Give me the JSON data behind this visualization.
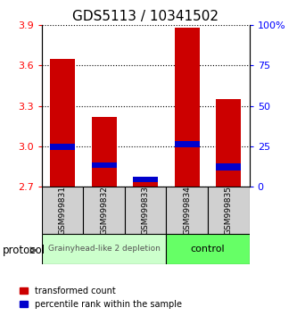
{
  "title": "GDS5113 / 10341502",
  "samples": [
    "GSM999831",
    "GSM999832",
    "GSM999833",
    "GSM999834",
    "GSM999835"
  ],
  "red_bar_bottom": [
    2.7,
    2.7,
    2.7,
    2.7,
    2.7
  ],
  "red_bar_top": [
    3.65,
    3.22,
    2.77,
    3.88,
    3.35
  ],
  "blue_bar_bottom": [
    2.97,
    2.84,
    2.73,
    2.99,
    2.82
  ],
  "blue_bar_top": [
    3.02,
    2.88,
    2.77,
    3.04,
    2.87
  ],
  "ylim_left": [
    2.7,
    3.9
  ],
  "ylim_right": [
    0,
    100
  ],
  "yticks_left": [
    2.7,
    3.0,
    3.3,
    3.6,
    3.9
  ],
  "yticks_right": [
    0,
    25,
    50,
    75,
    100
  ],
  "ytick_labels_right": [
    "0",
    "25",
    "50",
    "75",
    "100%"
  ],
  "group1_samples": [
    0,
    1,
    2
  ],
  "group2_samples": [
    3,
    4
  ],
  "group1_label": "Grainyhead-like 2 depletion",
  "group2_label": "control",
  "group1_bg": "#ccffcc",
  "group2_bg": "#66ff66",
  "protocol_label": "protocol",
  "bar_width": 0.6,
  "red_color": "#cc0000",
  "blue_color": "#0000cc",
  "legend_red": "transformed count",
  "legend_blue": "percentile rank within the sample",
  "sample_box_color": "#d0d0d0",
  "plot_bg": "#ffffff"
}
